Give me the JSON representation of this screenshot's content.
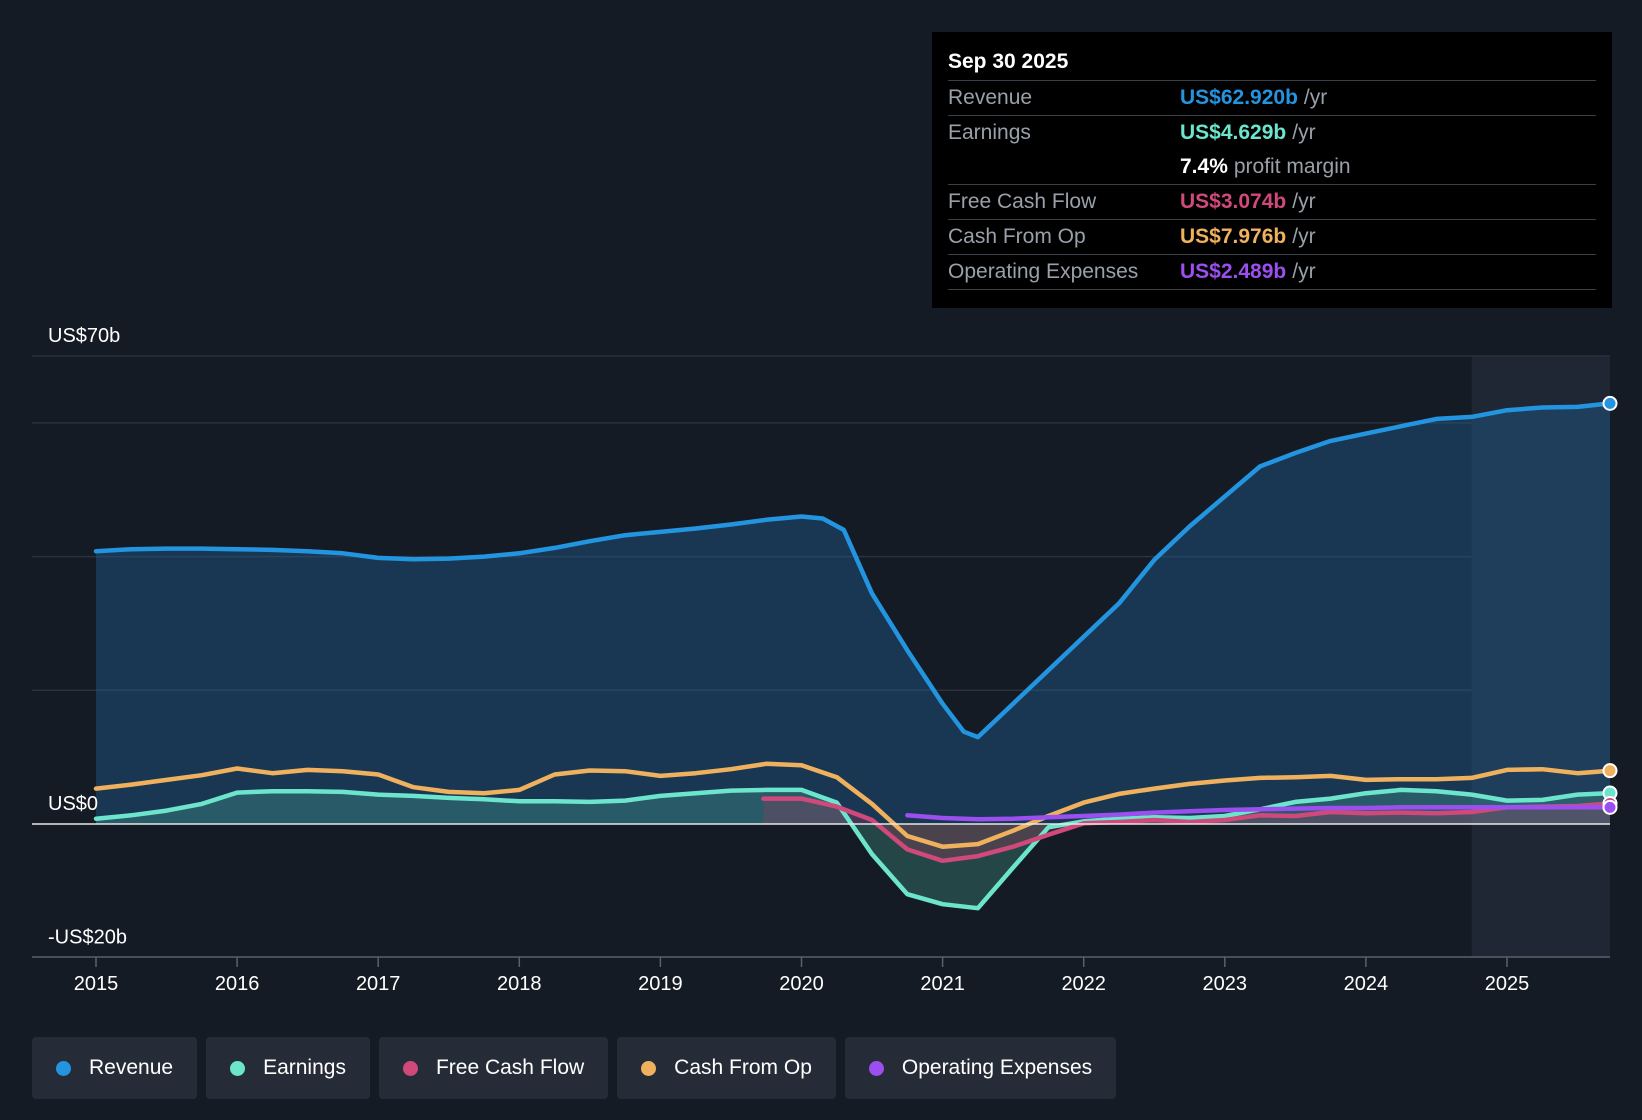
{
  "tooltip": {
    "date": "Sep 30 2025",
    "rows": [
      {
        "label": "Revenue",
        "value": "US$62.920b",
        "unit": "/yr",
        "color": "#2394df"
      },
      {
        "label": "Earnings",
        "value": "US$4.629b",
        "unit": "/yr",
        "color": "#6ce5cc"
      },
      {
        "margin_value": "7.4%",
        "margin_text": "profit margin"
      },
      {
        "label": "Free Cash Flow",
        "value": "US$3.074b",
        "unit": "/yr",
        "color": "#d0497b"
      },
      {
        "label": "Cash From Op",
        "value": "US$7.976b",
        "unit": "/yr",
        "color": "#f0b15e"
      },
      {
        "label": "Operating Expenses",
        "value": "US$2.489b",
        "unit": "/yr",
        "color": "#9b4fef"
      }
    ]
  },
  "legend": [
    {
      "label": "Revenue",
      "color": "#2394df"
    },
    {
      "label": "Earnings",
      "color": "#6ce5cc"
    },
    {
      "label": "Free Cash Flow",
      "color": "#d0497b"
    },
    {
      "label": "Cash From Op",
      "color": "#f0b15e"
    },
    {
      "label": "Operating Expenses",
      "color": "#9b4fef"
    }
  ],
  "chart_data": {
    "type": "line",
    "title": "",
    "ylim": [
      -20,
      70
    ],
    "y_axis_labels": [
      {
        "value": 70,
        "text": "US$70b"
      },
      {
        "value": 0,
        "text": "US$0"
      },
      {
        "value": -20,
        "text": "-US$20b"
      }
    ],
    "grid_values": [
      70,
      60,
      40,
      20,
      0
    ],
    "x_ticks": [
      {
        "value": 2015,
        "text": "2015"
      },
      {
        "value": 2016,
        "text": "2016"
      },
      {
        "value": 2017,
        "text": "2017"
      },
      {
        "value": 2018,
        "text": "2018"
      },
      {
        "value": 2019,
        "text": "2019"
      },
      {
        "value": 2020,
        "text": "2020"
      },
      {
        "value": 2021,
        "text": "2021"
      },
      {
        "value": 2022,
        "text": "2022"
      },
      {
        "value": 2023,
        "text": "2023"
      },
      {
        "value": 2024,
        "text": "2024"
      },
      {
        "value": 2025,
        "text": "2025"
      }
    ],
    "xlim": [
      2014.55,
      2025.75
    ],
    "forecast_start": 2024.75,
    "series": [
      {
        "name": "Revenue",
        "color": "#2394df",
        "fill": true,
        "points": [
          [
            2015.0,
            40.8
          ],
          [
            2015.25,
            41.1
          ],
          [
            2015.5,
            41.2
          ],
          [
            2015.75,
            41.2
          ],
          [
            2016.0,
            41.1
          ],
          [
            2016.25,
            41.0
          ],
          [
            2016.5,
            40.8
          ],
          [
            2016.75,
            40.5
          ],
          [
            2017.0,
            39.8
          ],
          [
            2017.25,
            39.6
          ],
          [
            2017.5,
            39.7
          ],
          [
            2017.75,
            40.0
          ],
          [
            2018.0,
            40.5
          ],
          [
            2018.25,
            41.3
          ],
          [
            2018.5,
            42.3
          ],
          [
            2018.75,
            43.2
          ],
          [
            2019.0,
            43.7
          ],
          [
            2019.25,
            44.2
          ],
          [
            2019.5,
            44.8
          ],
          [
            2019.75,
            45.5
          ],
          [
            2020.0,
            46.0
          ],
          [
            2020.15,
            45.7
          ],
          [
            2020.3,
            44.0
          ],
          [
            2020.5,
            34.5
          ],
          [
            2020.75,
            26.0
          ],
          [
            2021.0,
            18.0
          ],
          [
            2021.15,
            13.8
          ],
          [
            2021.25,
            13.0
          ],
          [
            2021.5,
            18.0
          ],
          [
            2021.75,
            23.0
          ],
          [
            2022.0,
            28.0
          ],
          [
            2022.25,
            33.0
          ],
          [
            2022.5,
            39.5
          ],
          [
            2022.75,
            44.5
          ],
          [
            2023.0,
            49.0
          ],
          [
            2023.25,
            53.5
          ],
          [
            2023.5,
            55.5
          ],
          [
            2023.75,
            57.3
          ],
          [
            2024.0,
            58.4
          ],
          [
            2024.25,
            59.5
          ],
          [
            2024.5,
            60.6
          ],
          [
            2024.75,
            60.9
          ],
          [
            2025.0,
            61.9
          ],
          [
            2025.25,
            62.3
          ],
          [
            2025.5,
            62.4
          ],
          [
            2025.73,
            62.92
          ]
        ]
      },
      {
        "name": "Cash From Op",
        "color": "#f0b15e",
        "fill": false,
        "points": [
          [
            2015.0,
            5.3
          ],
          [
            2015.25,
            5.9
          ],
          [
            2015.5,
            6.6
          ],
          [
            2015.75,
            7.3
          ],
          [
            2016.0,
            8.3
          ],
          [
            2016.25,
            7.6
          ],
          [
            2016.5,
            8.1
          ],
          [
            2016.75,
            7.9
          ],
          [
            2017.0,
            7.4
          ],
          [
            2017.25,
            5.5
          ],
          [
            2017.5,
            4.8
          ],
          [
            2017.75,
            4.6
          ],
          [
            2018.0,
            5.1
          ],
          [
            2018.25,
            7.4
          ],
          [
            2018.5,
            8.0
          ],
          [
            2018.75,
            7.9
          ],
          [
            2019.0,
            7.2
          ],
          [
            2019.25,
            7.6
          ],
          [
            2019.5,
            8.2
          ],
          [
            2019.75,
            9.0
          ],
          [
            2020.0,
            8.8
          ],
          [
            2020.25,
            7.0
          ],
          [
            2020.5,
            3.0
          ],
          [
            2020.75,
            -1.8
          ],
          [
            2021.0,
            -3.4
          ],
          [
            2021.25,
            -3.0
          ],
          [
            2021.5,
            -1.0
          ],
          [
            2021.75,
            1.2
          ],
          [
            2022.0,
            3.2
          ],
          [
            2022.25,
            4.5
          ],
          [
            2022.5,
            5.3
          ],
          [
            2022.75,
            6.0
          ],
          [
            2023.0,
            6.5
          ],
          [
            2023.25,
            6.9
          ],
          [
            2023.5,
            7.0
          ],
          [
            2023.75,
            7.2
          ],
          [
            2024.0,
            6.6
          ],
          [
            2024.25,
            6.7
          ],
          [
            2024.5,
            6.7
          ],
          [
            2024.75,
            6.9
          ],
          [
            2025.0,
            8.1
          ],
          [
            2025.25,
            8.2
          ],
          [
            2025.5,
            7.6
          ],
          [
            2025.73,
            7.976
          ]
        ]
      },
      {
        "name": "Earnings",
        "color": "#6ce5cc",
        "fill": true,
        "points": [
          [
            2015.0,
            0.8
          ],
          [
            2015.25,
            1.3
          ],
          [
            2015.5,
            2.0
          ],
          [
            2015.75,
            3.0
          ],
          [
            2016.0,
            4.7
          ],
          [
            2016.25,
            4.9
          ],
          [
            2016.5,
            4.9
          ],
          [
            2016.75,
            4.8
          ],
          [
            2017.0,
            4.4
          ],
          [
            2017.25,
            4.2
          ],
          [
            2017.5,
            3.9
          ],
          [
            2017.75,
            3.7
          ],
          [
            2018.0,
            3.4
          ],
          [
            2018.25,
            3.4
          ],
          [
            2018.5,
            3.3
          ],
          [
            2018.75,
            3.5
          ],
          [
            2019.0,
            4.2
          ],
          [
            2019.25,
            4.6
          ],
          [
            2019.5,
            5.0
          ],
          [
            2019.75,
            5.1
          ],
          [
            2020.0,
            5.1
          ],
          [
            2020.25,
            3.2
          ],
          [
            2020.5,
            -4.5
          ],
          [
            2020.75,
            -10.5
          ],
          [
            2021.0,
            -12.0
          ],
          [
            2021.25,
            -12.6
          ],
          [
            2021.5,
            -6.5
          ],
          [
            2021.75,
            -0.5
          ],
          [
            2022.0,
            0.4
          ],
          [
            2022.25,
            0.8
          ],
          [
            2022.5,
            1.0
          ],
          [
            2022.75,
            0.9
          ],
          [
            2023.0,
            1.2
          ],
          [
            2023.25,
            2.2
          ],
          [
            2023.5,
            3.3
          ],
          [
            2023.75,
            3.8
          ],
          [
            2024.0,
            4.6
          ],
          [
            2024.25,
            5.1
          ],
          [
            2024.5,
            4.9
          ],
          [
            2024.75,
            4.4
          ],
          [
            2025.0,
            3.5
          ],
          [
            2025.25,
            3.6
          ],
          [
            2025.5,
            4.4
          ],
          [
            2025.73,
            4.629
          ]
        ]
      },
      {
        "name": "Free Cash Flow",
        "color": "#d0497b",
        "fill": true,
        "points": [
          [
            2019.73,
            3.8
          ],
          [
            2020.0,
            3.8
          ],
          [
            2020.25,
            2.6
          ],
          [
            2020.5,
            0.6
          ],
          [
            2020.75,
            -3.8
          ],
          [
            2021.0,
            -5.5
          ],
          [
            2021.25,
            -4.8
          ],
          [
            2021.5,
            -3.4
          ],
          [
            2021.75,
            -1.6
          ],
          [
            2022.0,
            0.1
          ],
          [
            2022.25,
            0.3
          ],
          [
            2022.5,
            0.6
          ],
          [
            2022.75,
            0.3
          ],
          [
            2023.0,
            0.6
          ],
          [
            2023.25,
            1.3
          ],
          [
            2023.5,
            1.2
          ],
          [
            2023.75,
            1.8
          ],
          [
            2024.0,
            1.6
          ],
          [
            2024.25,
            1.7
          ],
          [
            2024.5,
            1.6
          ],
          [
            2024.75,
            1.8
          ],
          [
            2025.0,
            2.5
          ],
          [
            2025.25,
            2.6
          ],
          [
            2025.5,
            2.7
          ],
          [
            2025.73,
            3.074
          ]
        ]
      },
      {
        "name": "Operating Expenses",
        "color": "#9b4fef",
        "fill": false,
        "points": [
          [
            2020.75,
            1.3
          ],
          [
            2021.0,
            0.9
          ],
          [
            2021.25,
            0.7
          ],
          [
            2021.5,
            0.8
          ],
          [
            2021.75,
            1.0
          ],
          [
            2022.0,
            1.2
          ],
          [
            2022.25,
            1.4
          ],
          [
            2022.5,
            1.7
          ],
          [
            2022.75,
            1.9
          ],
          [
            2023.0,
            2.1
          ],
          [
            2023.25,
            2.2
          ],
          [
            2023.5,
            2.3
          ],
          [
            2023.75,
            2.4
          ],
          [
            2024.0,
            2.4
          ],
          [
            2024.25,
            2.5
          ],
          [
            2024.5,
            2.5
          ],
          [
            2024.75,
            2.5
          ],
          [
            2025.0,
            2.5
          ],
          [
            2025.25,
            2.5
          ],
          [
            2025.5,
            2.5
          ],
          [
            2025.73,
            2.489
          ]
        ]
      }
    ]
  }
}
